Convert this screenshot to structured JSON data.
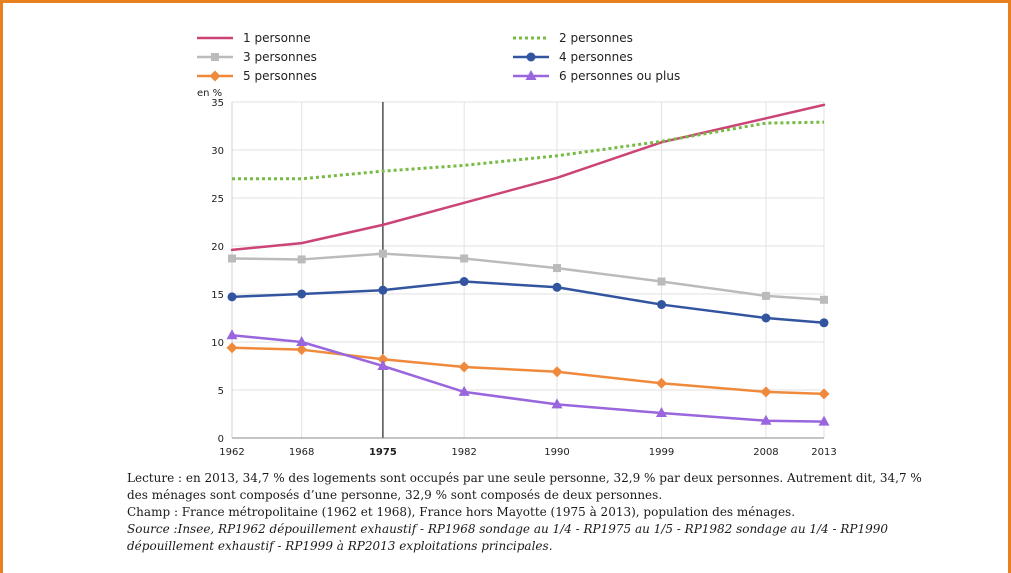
{
  "chart_data": {
    "type": "line",
    "title": "",
    "xlabel": "",
    "ylabel": "en %",
    "categories": [
      "1962",
      "1968",
      "1975",
      "1982",
      "1990",
      "1999",
      "2008",
      "2013"
    ],
    "emphasized_category": "1975",
    "ylim": [
      0,
      35
    ],
    "yticks": [
      0,
      5,
      10,
      15,
      20,
      25,
      30,
      35
    ],
    "grid": true,
    "legend_position": "top",
    "series": [
      {
        "name": "1 personne",
        "color": "#cc4477",
        "style": "solid",
        "marker": "none",
        "values": [
          19.6,
          20.3,
          22.2,
          24.5,
          27.1,
          30.8,
          33.3,
          34.7
        ]
      },
      {
        "name": "2 personnes",
        "color": "#77bb44",
        "style": "dotted",
        "marker": "none",
        "values": [
          27.0,
          27.0,
          27.8,
          28.4,
          29.4,
          30.9,
          32.8,
          32.9
        ]
      },
      {
        "name": "3 personnes",
        "color": "#bbbbbb",
        "style": "solid",
        "marker": "square",
        "values": [
          18.7,
          18.6,
          19.2,
          18.7,
          17.7,
          16.3,
          14.8,
          14.4
        ]
      },
      {
        "name": "4 personnes",
        "color": "#3355a0",
        "style": "solid",
        "marker": "circle",
        "values": [
          14.7,
          15.0,
          15.4,
          16.3,
          15.7,
          13.9,
          12.5,
          12.0
        ]
      },
      {
        "name": "5 personnes",
        "color": "#ef8a3d",
        "style": "solid",
        "marker": "diamond",
        "values": [
          9.4,
          9.2,
          8.2,
          7.4,
          6.9,
          5.7,
          4.8,
          4.6
        ]
      },
      {
        "name": "6 personnes ou plus",
        "color": "#9966dd",
        "style": "solid",
        "marker": "triangle",
        "values": [
          10.7,
          10.0,
          7.5,
          4.8,
          3.5,
          2.6,
          1.8,
          1.7
        ]
      }
    ]
  },
  "notes": {
    "lecture": "Lecture : en 2013, 34,7 % des logements sont occupés par une seule personne, 32,9 % par deux personnes. Autrement dit, 34,7 % des ménages sont composés d’une personne, 32,9 % sont composés de deux personnes.",
    "champ": "Champ : France métropolitaine (1962 et 1968), France hors Mayotte (1975 à 2013), population des ménages.",
    "source": "Source :Insee, RP1962 dépouillement exhaustif - RP1968 sondage au 1/4 - RP1975 au 1/5 - RP1982 sondage au 1/4 - RP1990 dépouillement exhaustif - RP1999 à RP2013 exploitations principales."
  }
}
